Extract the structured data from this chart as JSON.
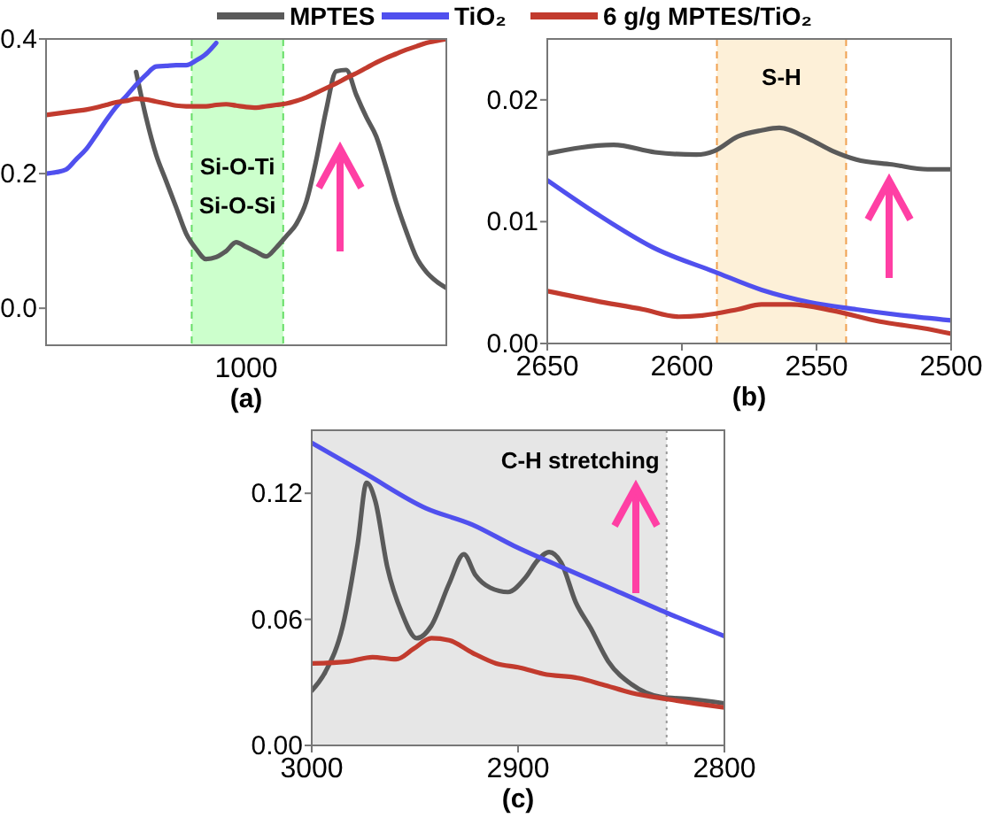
{
  "chart_data": [
    {
      "type": "line",
      "xlabel": "(a)",
      "categories": [
        null,
        null,
        null,
        null,
        null,
        null,
        null,
        null,
        null,
        null,
        null,
        null,
        null,
        null,
        null,
        null,
        null,
        null,
        null,
        null,
        null,
        null,
        null,
        null,
        null,
        null,
        null,
        null,
        null,
        null,
        null,
        null,
        null,
        null,
        null,
        null,
        null,
        null,
        null,
        null,
        null
      ],
      "annotations": [
        "1000",
        "Si-O-Ti\nSi-O-Si"
      ],
      "ylim": [
        -0.055,
        0.4
      ],
      "yticks": [
        {
          "value": 0,
          "label": "0.0"
        },
        {
          "value": 0.2,
          "label": "0.2"
        },
        {
          "value": 0.4,
          "label": "0.4"
        }
      ],
      "legend": "top",
      "line_style": "solid",
      "series": [
        {
          "name": "MPTES",
          "color": "#5a5a5a",
          "values": [
            null,
            null,
            null,
            null,
            null,
            null,
            null,
            null,
            null,
            0.351,
            0.283,
            0.228,
            0.189,
            0.15,
            0.111,
            0.088,
            0.073,
            0.076,
            0.085,
            0.098,
            0.091,
            0.084,
            0.077,
            0.09,
            0.107,
            0.125,
            0.158,
            0.22,
            0.295,
            0.352,
            0.354,
            0.317,
            0.284,
            0.255,
            0.208,
            0.157,
            0.114,
            0.076,
            0.054,
            0.04,
            0.03
          ]
        },
        {
          "name": "TiO₂",
          "color": "#5050ee",
          "values": [
            0.2,
            0.202,
            0.206,
            0.221,
            0.236,
            0.257,
            0.279,
            0.299,
            0.315,
            0.332,
            0.347,
            0.359,
            0.36,
            0.361,
            0.361,
            0.368,
            0.378,
            0.394,
            null,
            null,
            null,
            null,
            null,
            null,
            null,
            null,
            null,
            null,
            null,
            null,
            null,
            null,
            null,
            null,
            null,
            null,
            null,
            null,
            null,
            null,
            null
          ]
        },
        {
          "name": "6 g/g MPTES/TiO₂",
          "color": "#c23b2e",
          "values": [
            0.287,
            0.289,
            0.291,
            0.293,
            0.295,
            0.298,
            0.302,
            0.306,
            0.308,
            0.311,
            0.31,
            0.307,
            0.304,
            0.301,
            0.3,
            0.3,
            0.3,
            0.302,
            0.303,
            0.301,
            0.299,
            0.298,
            0.3,
            0.302,
            0.304,
            0.308,
            0.313,
            0.32,
            0.327,
            0.334,
            0.342,
            0.349,
            0.357,
            0.365,
            0.372,
            0.378,
            0.384,
            0.389,
            0.394,
            0.397,
            0.4
          ]
        }
      ]
    },
    {
      "type": "line",
      "xlabel": "(b)",
      "xlim": [
        2650,
        2500
      ],
      "xticks": [
        2650,
        2600,
        2550,
        2500
      ],
      "ylim": [
        0,
        0.025
      ],
      "yticks": [
        {
          "value": 0,
          "label": "0.00"
        },
        {
          "value": 0.01,
          "label": "0.01"
        },
        {
          "value": 0.02,
          "label": "0.02"
        }
      ],
      "line_style": "solid",
      "bands": [
        {
          "axis": "x",
          "from": 2587,
          "to": 2539,
          "label": "S-H",
          "color": "#fdf0d8"
        }
      ],
      "ref_lines": [
        {
          "axis": "x",
          "value": 2587,
          "color": "#f0a050",
          "line_style": "dashed"
        },
        {
          "axis": "x",
          "value": 2539,
          "color": "#f0a050",
          "line_style": "dashed"
        }
      ],
      "series": [
        {
          "color": "#5a5a5a",
          "x": [
            2650,
            2625.4,
            2610,
            2594.6,
            2588,
            2579.2,
            2570.4,
            2563.8,
            2552.8,
            2544,
            2535.2,
            2522,
            2508.8,
            2500
          ],
          "values": [
            0.0156,
            0.0163,
            0.0157,
            0.0155,
            0.0158,
            0.017,
            0.0175,
            0.0177,
            0.0168,
            0.0158,
            0.0151,
            0.0147,
            0.0143,
            0.0143
          ]
        },
        {
          "color": "#5050ee",
          "x": [
            2650,
            2632,
            2610,
            2588,
            2570.4,
            2552.8,
            2535.2,
            2517.6,
            2500
          ],
          "values": [
            0.0134,
            0.0107,
            0.0078,
            0.0059,
            0.0044,
            0.0034,
            0.0028,
            0.0023,
            0.0019
          ]
        },
        {
          "color": "#c23b2e",
          "x": [
            2650,
            2632,
            2614.4,
            2601.2,
            2592.4,
            2579.2,
            2570.4,
            2559.4,
            2544,
            2526.4,
            2508.8,
            2500
          ],
          "values": [
            0.0043,
            0.0035,
            0.0028,
            0.0022,
            0.0023,
            0.0028,
            0.0032,
            0.0032,
            0.0027,
            0.0018,
            0.0012,
            0.0008
          ]
        }
      ]
    },
    {
      "type": "line",
      "xlabel": "(c)",
      "xlim": [
        3000,
        2800
      ],
      "xticks": [
        3000,
        2900,
        2800
      ],
      "ylim": [
        0,
        0.15
      ],
      "yticks": [
        {
          "value": 0,
          "label": "0.00"
        },
        {
          "value": 0.06,
          "label": "0.06"
        },
        {
          "value": 0.12,
          "label": "0.12"
        }
      ],
      "line_style": "solid",
      "bands": [
        {
          "axis": "x",
          "from": 3000,
          "to": 2828,
          "label": "C-H stretching",
          "color": "#e6e6e6"
        }
      ],
      "ref_lines": [
        {
          "axis": "x",
          "value": 2828,
          "color": "#999999",
          "line_style": "dotted"
        }
      ],
      "series": [
        {
          "color": "#5a5a5a",
          "x": [
            3000,
            2993.4,
            2984.9,
            2977.7,
            2973.4,
            2969.1,
            2963.4,
            2956.3,
            2949.1,
            2942,
            2933.4,
            2926.3,
            2920.6,
            2913.4,
            2904.9,
            2896.3,
            2890.6,
            2884.9,
            2879.1,
            2872,
            2864.9,
            2856.3,
            2844.9,
            2830.6,
            2816.3,
            2800
          ],
          "values": [
            0.026,
            0.035,
            0.057,
            0.096,
            0.125,
            0.116,
            0.085,
            0.063,
            0.051,
            0.057,
            0.077,
            0.091,
            0.081,
            0.075,
            0.073,
            0.08,
            0.088,
            0.092,
            0.087,
            0.068,
            0.056,
            0.04,
            0.029,
            0.023,
            0.022,
            0.02
          ]
        },
        {
          "color": "#5050ee",
          "x": [
            3000,
            2973.4,
            2944.9,
            2922,
            2902,
            2879.1,
            2853.4,
            2827.7,
            2800
          ],
          "values": [
            0.144,
            0.129,
            0.113,
            0.105,
            0.095,
            0.085,
            0.074,
            0.063,
            0.052
          ]
        },
        {
          "color": "#c23b2e",
          "x": [
            3000,
            2982,
            2970.6,
            2959.1,
            2950.6,
            2942,
            2933.4,
            2922,
            2910.6,
            2899.1,
            2887.7,
            2870.6,
            2859.1,
            2844.9,
            2827.7,
            2800
          ],
          "values": [
            0.039,
            0.04,
            0.042,
            0.041,
            0.046,
            0.051,
            0.05,
            0.044,
            0.039,
            0.037,
            0.034,
            0.032,
            0.029,
            0.025,
            0.022,
            0.018
          ]
        }
      ]
    }
  ]
}
